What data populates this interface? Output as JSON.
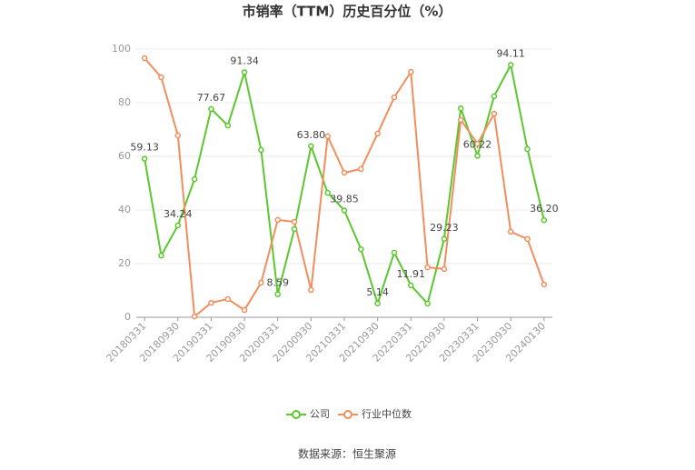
{
  "chart_data": {
    "type": "line",
    "title": "市销率（TTM）历史百分位（%）",
    "categories": [
      "20180331",
      null,
      "20180930",
      null,
      "20190331",
      null,
      "20190930",
      null,
      "20200331",
      null,
      "20200930",
      null,
      "20210331",
      null,
      "20210930",
      null,
      "20220331",
      null,
      "20220930",
      null,
      "20230331",
      null,
      "20230930",
      null,
      "20240130"
    ],
    "series": [
      {
        "name": "公司",
        "color": "#5cc72e",
        "values": [
          59.13,
          23,
          34.24,
          51.5,
          77.67,
          71.5,
          91.34,
          62.4,
          8.59,
          32.9,
          63.8,
          46.4,
          39.85,
          25.4,
          5.14,
          24.1,
          11.91,
          5.1,
          29.23,
          77.9,
          60.22,
          82.4,
          94.11,
          62.7,
          36.2
        ],
        "value_labels": [
          "59.13",
          null,
          "34.24",
          null,
          "77.67",
          null,
          "91.34",
          null,
          "8.59",
          null,
          "63.80",
          null,
          "39.85",
          null,
          "5.14",
          null,
          "11.91",
          null,
          "29.23",
          null,
          "60.22",
          null,
          "94.11",
          null,
          "36.20"
        ]
      },
      {
        "name": "行业中位数",
        "color": "#f28e5e",
        "values": [
          96.6,
          89.5,
          67.8,
          0.3,
          5.4,
          6.8,
          2.7,
          12.9,
          36.3,
          35.6,
          10.2,
          67.5,
          53.9,
          55.3,
          68.5,
          82,
          91.5,
          18.6,
          18,
          73.6,
          64.7,
          75.9,
          31.9,
          29.2,
          12.2
        ]
      }
    ],
    "ylim": [
      0,
      100
    ],
    "yticks": [
      0,
      20,
      40,
      60,
      80,
      100
    ],
    "grid": true,
    "source": "数据来源：恒生聚源"
  }
}
